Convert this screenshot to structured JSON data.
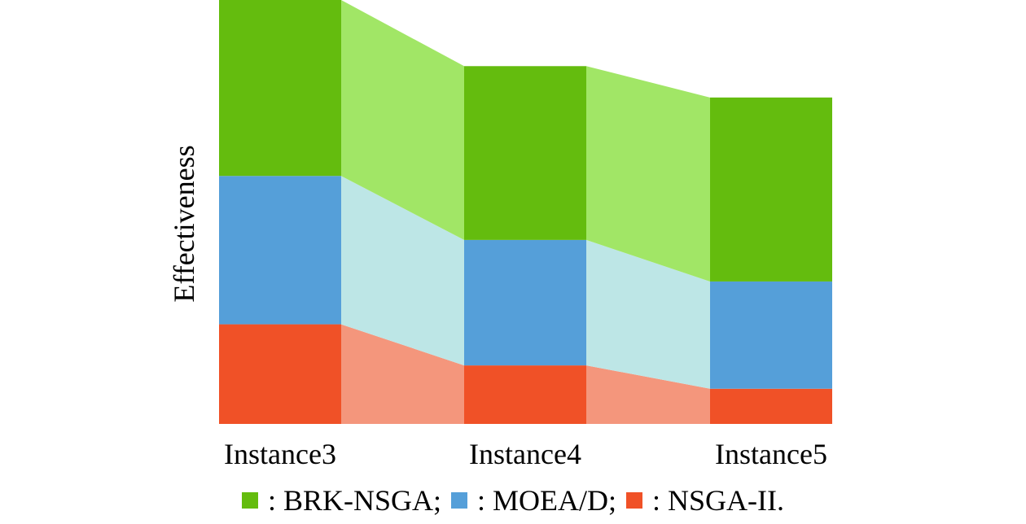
{
  "chart_data": {
    "type": "bar",
    "stacked": true,
    "categories": [
      "Instance3",
      "Instance4",
      "Instance5"
    ],
    "ylabel": "Effectiveness",
    "xlabel": "",
    "ylim": [
      0,
      1.0
    ],
    "series": [
      {
        "name": "NSGA-II.",
        "values": [
          0.235,
          0.138,
          0.083
        ]
      },
      {
        "name": "MOEA/D",
        "values": [
          0.35,
          0.296,
          0.253
        ]
      },
      {
        "name": "BRK-NSGA",
        "values": [
          0.415,
          0.41,
          0.434
        ]
      }
    ],
    "colors": {
      "BRK-NSGA": "#64bc0e",
      "MOEA/D": "#559fd9",
      "NSGA-II.": "#f05127"
    },
    "band_colors": {
      "BRK-NSGA": "#a1e666",
      "MOEA/D": "#bde6e6",
      "NSGA-II.": "#f4967c"
    }
  },
  "legend": [
    {
      "marker": "■",
      "label": " : BRK-NSGA;",
      "color": "#64bc0e"
    },
    {
      "marker": "■",
      "label": " : MOEA/D;",
      "color": "#559fd9"
    },
    {
      "marker": "■",
      "label": " : NSGA-II.",
      "color": "#f05127"
    }
  ]
}
